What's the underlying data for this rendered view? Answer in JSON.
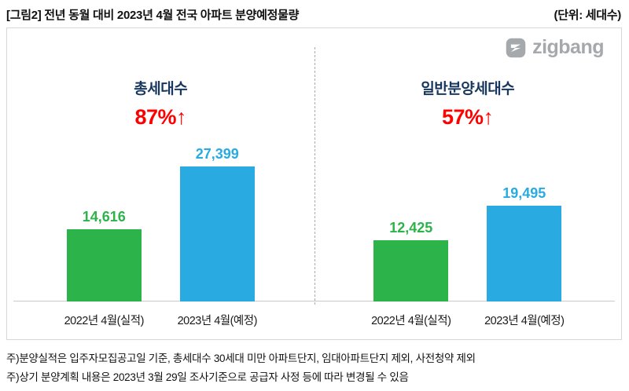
{
  "header": {
    "title": "[그림2] 전년 동월 대비 2023년 4월 전국 아파트 분양예정물량",
    "unit": "(단위: 세대수)"
  },
  "logo": {
    "text": "zigbang"
  },
  "colors": {
    "green": "#2CB34A",
    "blue": "#29ABE2",
    "red": "#FF0000",
    "navy": "#17375E",
    "logo_gray": "#A6A9AC"
  },
  "chart_data": {
    "type": "bar",
    "title": "전년 동월 대비 2023년 4월 전국 아파트 분양예정물량",
    "unit_label": "(단위: 세대수)",
    "ymax": 27399,
    "legend_position": "none",
    "grid": false,
    "groups": [
      {
        "label": "총세대수",
        "change_label": "87%↑",
        "bars": [
          {
            "category": "2022년 4월(실적)",
            "value": 14616,
            "label": "14,616",
            "color": "#2CB34A",
            "label_color": "#2CB34A"
          },
          {
            "category": "2023년 4월(예정)",
            "value": 27399,
            "label": "27,399",
            "color": "#29ABE2",
            "label_color": "#29ABE2"
          }
        ]
      },
      {
        "label": "일반분양세대수",
        "change_label": "57%↑",
        "bars": [
          {
            "category": "2022년 4월(실적)",
            "value": 12425,
            "label": "12,425",
            "color": "#2CB34A",
            "label_color": "#2CB34A"
          },
          {
            "category": "2023년 4월(예정)",
            "value": 19495,
            "label": "19,495",
            "color": "#29ABE2",
            "label_color": "#29ABE2"
          }
        ]
      }
    ]
  },
  "footnotes": [
    "주)분양실적은 입주자모집공고일 기준, 총세대수 30세대 미만 아파트단지, 임대아파트단지 제외, 사전청약 제외",
    "주)상기 분양계획 내용은 2023년 3월 29일 조사기준으로 공급자 사정 등에 따라 변경될 수 있음"
  ]
}
